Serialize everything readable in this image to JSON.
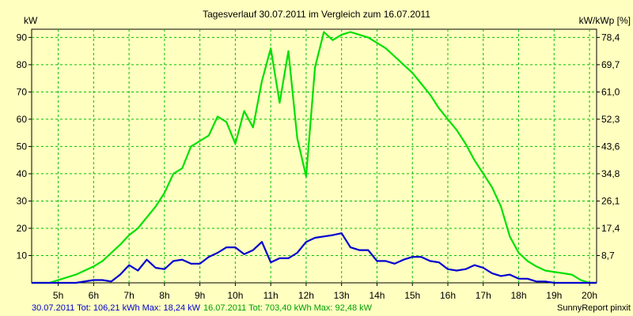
{
  "chart_data": {
    "type": "line",
    "title": "Tagesverlauf 30.07.2011 im Vergleich zum 16.07.2011",
    "ylabel": "kW",
    "y2label": "kW/kWp [%]",
    "ylim": [
      0,
      93
    ],
    "xlim": [
      4.25,
      20.2
    ],
    "grid": true,
    "y_ticks": [
      "10",
      "20",
      "30",
      "40",
      "50",
      "60",
      "70",
      "80",
      "90"
    ],
    "y2_ticks": [
      "8,7",
      "17,4",
      "26,1",
      "34,8",
      "43,6",
      "52,3",
      "61,0",
      "69,7",
      "78,4"
    ],
    "x_ticks": [
      "5h",
      "6h",
      "7h",
      "8h",
      "9h",
      "10h",
      "11h",
      "12h",
      "13h",
      "14h",
      "15h",
      "16h",
      "17h",
      "18h",
      "19h",
      "20h"
    ],
    "series": [
      {
        "color": "#00e000",
        "x": [
          4.25,
          4.75,
          5.0,
          5.5,
          6.0,
          6.25,
          6.5,
          6.75,
          7.0,
          7.25,
          7.5,
          7.75,
          8.0,
          8.25,
          8.5,
          8.75,
          9.0,
          9.25,
          9.5,
          9.75,
          10.0,
          10.25,
          10.5,
          10.75,
          11.0,
          11.25,
          11.5,
          11.75,
          12.0,
          12.25,
          12.5,
          12.75,
          13.0,
          13.25,
          13.5,
          13.75,
          14.0,
          14.25,
          14.5,
          14.75,
          15.0,
          15.25,
          15.5,
          15.75,
          16.0,
          16.25,
          16.5,
          16.75,
          17.0,
          17.25,
          17.5,
          17.75,
          18.0,
          18.25,
          18.5,
          18.75,
          19.0,
          19.25,
          19.5,
          19.75,
          20.0,
          20.2
        ],
        "values": [
          0,
          0,
          1,
          3,
          6,
          8,
          11,
          14,
          17.5,
          20,
          24,
          28,
          33,
          40,
          42,
          50,
          52,
          54,
          61,
          59,
          51,
          63,
          57,
          74,
          86,
          66,
          85,
          53,
          39,
          79,
          92,
          89,
          91,
          92,
          91,
          90,
          88,
          86,
          83,
          80,
          77,
          73,
          69,
          64,
          60,
          56,
          51,
          45,
          40,
          35,
          28,
          17,
          11,
          8,
          6,
          4.5,
          4,
          3.5,
          3,
          1,
          0,
          0
        ]
      },
      {
        "color": "#0000d0",
        "x": [
          4.25,
          5.5,
          6.0,
          6.25,
          6.5,
          6.75,
          7.0,
          7.25,
          7.5,
          7.75,
          8.0,
          8.25,
          8.5,
          8.75,
          9.0,
          9.25,
          9.5,
          9.75,
          10.0,
          10.25,
          10.5,
          10.75,
          11.0,
          11.25,
          11.5,
          11.75,
          12.0,
          12.25,
          12.5,
          12.75,
          13.0,
          13.25,
          13.5,
          13.75,
          14.0,
          14.25,
          14.5,
          14.75,
          15.0,
          15.25,
          15.5,
          15.75,
          16.0,
          16.25,
          16.5,
          16.75,
          17.0,
          17.25,
          17.5,
          17.75,
          18.0,
          18.25,
          18.5,
          18.75,
          19.0,
          19.25,
          19.5,
          19.75,
          20.0,
          20.2
        ],
        "values": [
          0,
          0,
          1,
          1,
          0.5,
          3,
          6.5,
          4.5,
          8.5,
          5.5,
          5,
          8,
          8.5,
          7,
          7,
          9.5,
          11,
          13,
          13,
          10.5,
          12,
          15,
          7.5,
          9,
          9,
          11,
          15,
          16.5,
          17,
          17.5,
          18.2,
          13,
          12,
          12,
          8,
          8,
          7,
          8.5,
          9.5,
          9.5,
          8,
          7.5,
          5,
          4.5,
          5,
          6.5,
          5.5,
          3.5,
          2.5,
          3,
          1.5,
          1.5,
          0.5,
          0.5,
          0,
          0,
          0,
          0,
          0,
          0
        ]
      }
    ]
  },
  "footer": {
    "left": "30.07.2011 Tot: 106,21 kWh Max: 18,24 kW",
    "left_color": "#0000d0",
    "middle": "16.07.2011 Tot: 703,40 kWh Max: 92,48 kW",
    "middle_color": "#00a000",
    "right": "SunnyReport pinxit"
  }
}
